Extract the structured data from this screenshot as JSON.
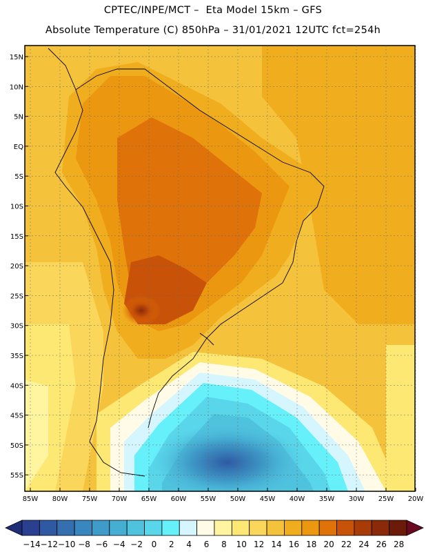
{
  "header": {
    "line1": "CPTEC/INPE/MCT –  Eta Model 15km – GFS",
    "line2": "Absolute Temperature (C) 850hPa – 31/01/2021 12UTC fct=254h"
  },
  "axes": {
    "lat_labels": [
      "15N",
      "10N",
      "5N",
      "EQ",
      "5S",
      "10S",
      "15S",
      "20S",
      "25S",
      "30S",
      "35S",
      "40S",
      "45S",
      "50S",
      "55S"
    ],
    "lon_labels": [
      "85W",
      "80W",
      "75W",
      "70W",
      "65W",
      "60W",
      "55W",
      "50W",
      "45W",
      "40W",
      "35W",
      "30W",
      "25W",
      "20W"
    ]
  },
  "colorbar": {
    "labels": [
      "-14",
      "-12",
      "-10",
      "-8",
      "-6",
      "-4",
      "-2",
      "0",
      "2",
      "4",
      "6",
      "8",
      "10",
      "12",
      "14",
      "16",
      "18",
      "20",
      "22",
      "24",
      "26",
      "28"
    ],
    "colors": [
      "#2a3f8f",
      "#2f5aa3",
      "#3470b0",
      "#3a86be",
      "#3f9bc8",
      "#46aed2",
      "#4fc2de",
      "#59d6ea",
      "#66f0fa",
      "#d6f6ff",
      "#fffbe6",
      "#fff5a0",
      "#fde874",
      "#fad65a",
      "#f5c23c",
      "#f0ae1e",
      "#ec9710",
      "#e0720a",
      "#c85208",
      "#a83c08",
      "#8a2a0a",
      "#6c1a0a"
    ],
    "under_color": "#1e2f78",
    "over_color": "#6a0a22"
  }
}
